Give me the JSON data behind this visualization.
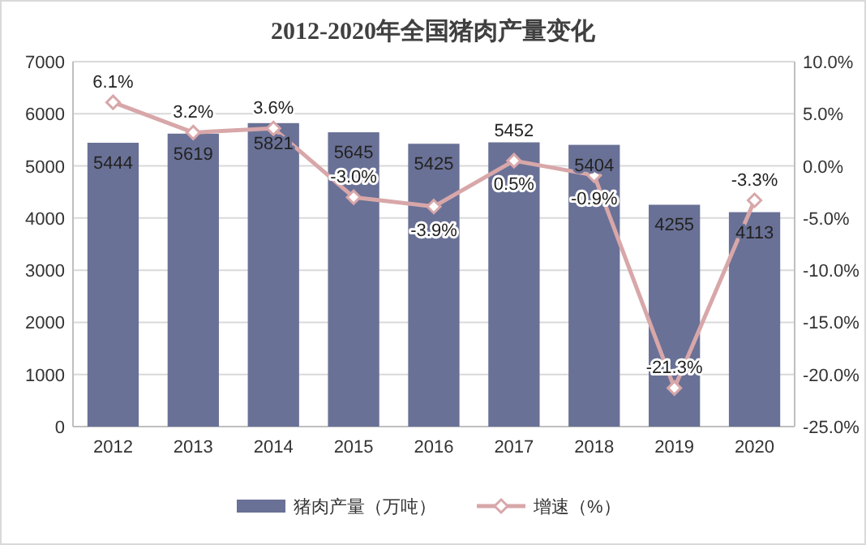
{
  "chart_data": {
    "type": "bar",
    "title": "2012-2020年全国猪肉产量变化",
    "categories": [
      "2012",
      "2013",
      "2014",
      "2015",
      "2016",
      "2017",
      "2018",
      "2019",
      "2020"
    ],
    "series": [
      {
        "name": "猪肉产量（万吨）",
        "color": "#6a7196",
        "values": [
          5444,
          5619,
          5821,
          5645,
          5425,
          5452,
          5404,
          4255,
          4113
        ]
      },
      {
        "name": "增速（%）",
        "type": "line",
        "axis": "y2",
        "color": "#d8a7a9",
        "marker": "diamond",
        "values": [
          6.1,
          3.2,
          3.6,
          -3.0,
          -3.9,
          0.5,
          -0.9,
          -21.3,
          -3.3
        ],
        "value_labels": [
          "6.1%",
          "3.2%",
          "3.6%",
          "-3.0%",
          "-3.9%",
          "0.5%",
          "-0.9%",
          "-21.3%",
          "-3.3%"
        ]
      }
    ],
    "data_labels": true,
    "ylim": [
      0,
      7000
    ],
    "yticks": [
      0,
      1000,
      2000,
      3000,
      4000,
      5000,
      6000,
      7000
    ],
    "y2lim": [
      -25,
      10
    ],
    "y2ticks": [
      {
        "value": -25,
        "label": "-25.0%"
      },
      {
        "value": -20,
        "label": "-20.0%"
      },
      {
        "value": -15,
        "label": "-15.0%"
      },
      {
        "value": -10,
        "label": "-10.0%"
      },
      {
        "value": -5,
        "label": "-5.0%"
      },
      {
        "value": 0,
        "label": "0.0%"
      },
      {
        "value": 5,
        "label": "5.0%"
      },
      {
        "value": 10,
        "label": "10.0%"
      }
    ],
    "grid": "y",
    "legend": "bottom"
  }
}
